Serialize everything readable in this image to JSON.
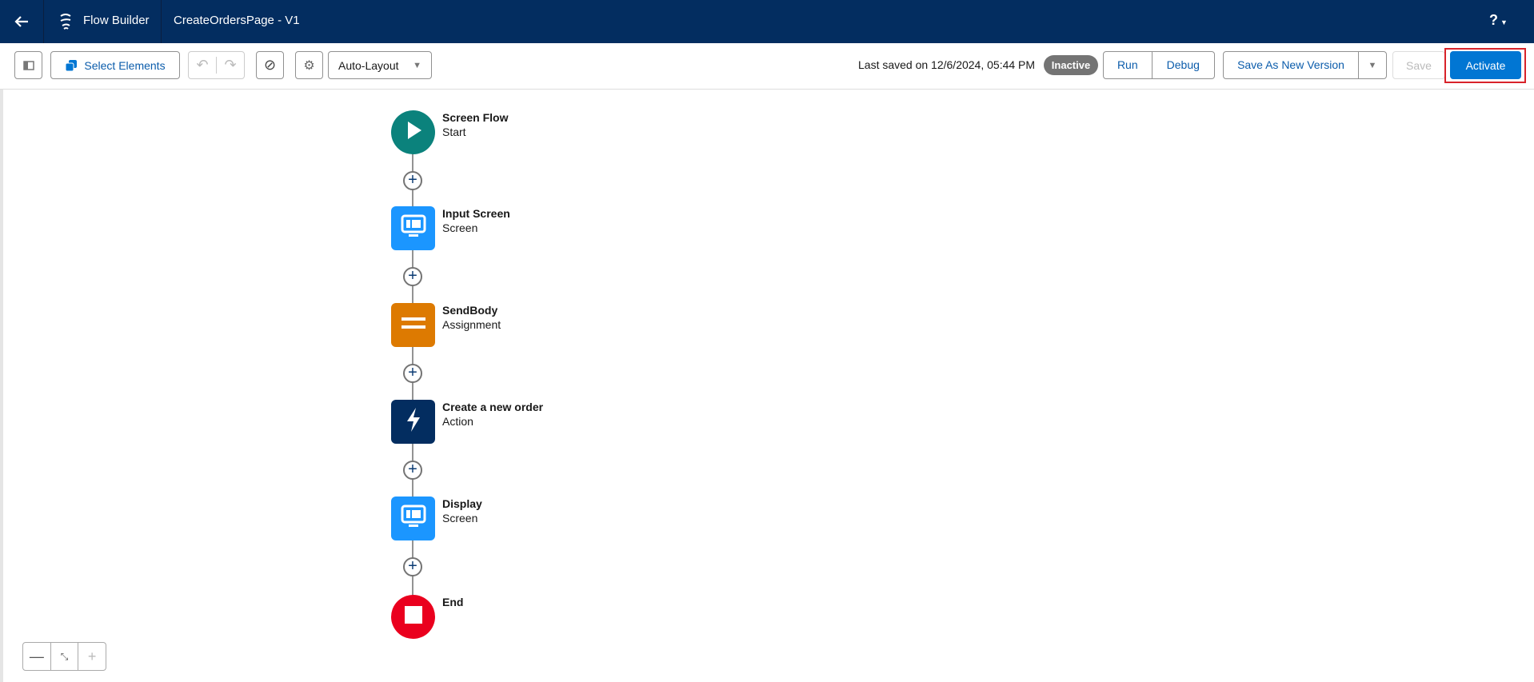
{
  "header": {
    "app_name": "Flow Builder",
    "flow_title": "CreateOrdersPage - V1",
    "help_label": "?"
  },
  "toolbar": {
    "select_elements": "Select Elements",
    "layout_mode": "Auto-Layout",
    "last_saved": "Last saved on 12/6/2024, 05:44 PM",
    "status": "Inactive",
    "run": "Run",
    "debug": "Debug",
    "save_as_new_version": "Save As New Version",
    "save": "Save",
    "activate": "Activate"
  },
  "colors": {
    "header": "#032d60",
    "start": "#0b827c",
    "screen": "#1b96ff",
    "assignment": "#dd7a01",
    "action": "#032d60",
    "end": "#ea001e",
    "primary": "#0176d3",
    "highlight": "#d8232a"
  },
  "nodes": [
    {
      "title": "Screen Flow",
      "subtitle": "Start",
      "icon": "play-icon"
    },
    {
      "title": "Input Screen",
      "subtitle": "Screen",
      "icon": "screen-icon"
    },
    {
      "title": "SendBody",
      "subtitle": "Assignment",
      "icon": "equals-icon"
    },
    {
      "title": "Create a new order",
      "subtitle": "Action",
      "icon": "lightning-icon"
    },
    {
      "title": "Display",
      "subtitle": "Screen",
      "icon": "screen-icon"
    },
    {
      "title": "End",
      "subtitle": "",
      "icon": "stop-icon"
    }
  ]
}
